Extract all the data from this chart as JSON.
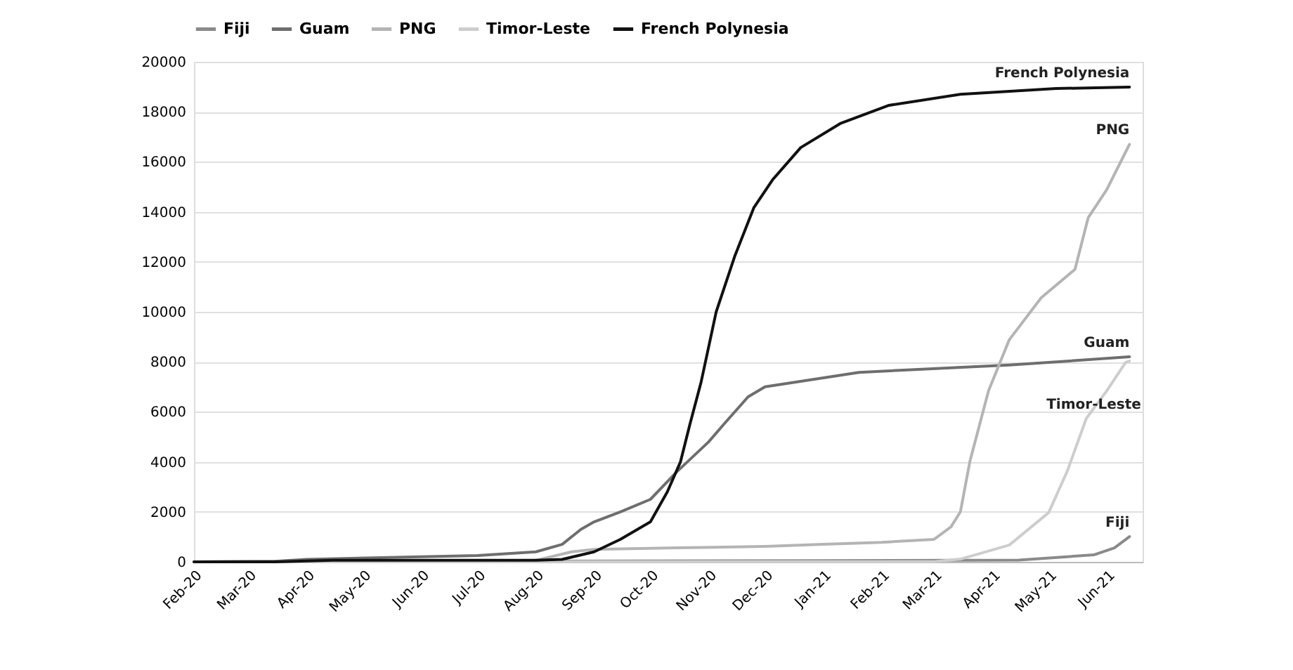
{
  "chart_data": {
    "type": "line",
    "xlim": [
      "2020-02-01",
      "2021-06-20"
    ],
    "xticks": [
      {
        "value": "2020-02-01",
        "label": "Feb-20"
      },
      {
        "value": "2020-03-01",
        "label": "Mar-20"
      },
      {
        "value": "2020-04-01",
        "label": "Apr-20"
      },
      {
        "value": "2020-05-01",
        "label": "May-20"
      },
      {
        "value": "2020-06-01",
        "label": "Jun-20"
      },
      {
        "value": "2020-07-01",
        "label": "Jul-20"
      },
      {
        "value": "2020-08-01",
        "label": "Aug-20"
      },
      {
        "value": "2020-09-01",
        "label": "Sep-20"
      },
      {
        "value": "2020-10-01",
        "label": "Oct-20"
      },
      {
        "value": "2020-11-01",
        "label": "Nov-20"
      },
      {
        "value": "2020-12-01",
        "label": "Dec-20"
      },
      {
        "value": "2021-01-01",
        "label": "Jan-21"
      },
      {
        "value": "2021-02-01",
        "label": "Feb-21"
      },
      {
        "value": "2021-03-01",
        "label": "Mar-21"
      },
      {
        "value": "2021-04-01",
        "label": "Apr-21"
      },
      {
        "value": "2021-05-01",
        "label": "May-21"
      },
      {
        "value": "2021-06-01",
        "label": "Jun-21"
      }
    ],
    "ylim": [
      0,
      20000
    ],
    "yticks": [
      0,
      2000,
      4000,
      6000,
      8000,
      10000,
      12000,
      14000,
      16000,
      18000,
      20000
    ],
    "grid": "y",
    "legend": "top",
    "line_style": "solid",
    "marker": "none",
    "series": [
      {
        "name": "Fiji",
        "color": "#8a8a8a",
        "x": [
          "2020-02-01",
          "2020-04-01",
          "2020-08-01",
          "2021-01-01",
          "2021-04-15",
          "2021-05-25",
          "2021-06-05",
          "2021-06-13"
        ],
        "values": [
          0,
          20,
          30,
          50,
          70,
          280,
          560,
          1010
        ]
      },
      {
        "name": "Guam",
        "color": "#6e6e6e",
        "x": [
          "2020-02-01",
          "2020-03-15",
          "2020-04-01",
          "2020-07-01",
          "2020-08-01",
          "2020-08-15",
          "2020-08-25",
          "2020-09-01",
          "2020-09-15",
          "2020-10-01",
          "2020-10-15",
          "2020-11-01",
          "2020-11-09",
          "2020-11-22",
          "2020-12-01",
          "2021-01-20",
          "2021-04-10",
          "2021-06-13"
        ],
        "values": [
          0,
          20,
          100,
          250,
          400,
          700,
          1300,
          1600,
          2000,
          2500,
          3600,
          4800,
          5500,
          6600,
          7000,
          7580,
          7870,
          8200
        ]
      },
      {
        "name": "PNG",
        "color": "#b4b4b4",
        "x": [
          "2020-02-01",
          "2020-07-15",
          "2020-08-01",
          "2020-08-20",
          "2020-09-01",
          "2020-10-15",
          "2020-12-01",
          "2021-01-01",
          "2021-02-01",
          "2021-03-01",
          "2021-03-10",
          "2021-03-15",
          "2021-03-20",
          "2021-03-30",
          "2021-04-10",
          "2021-04-27",
          "2021-05-15",
          "2021-05-22",
          "2021-06-01",
          "2021-06-13"
        ],
        "values": [
          0,
          20,
          60,
          400,
          500,
          560,
          620,
          700,
          780,
          900,
          1400,
          2000,
          4000,
          6850,
          8880,
          10560,
          11700,
          13760,
          14900,
          16700
        ]
      },
      {
        "name": "Timor-Leste",
        "color": "#cdcdcd",
        "x": [
          "2020-02-01",
          "2021-03-01",
          "2021-03-15",
          "2021-04-10",
          "2021-05-01",
          "2021-05-11",
          "2021-05-21",
          "2021-06-01",
          "2021-06-11",
          "2021-06-13"
        ],
        "values": [
          0,
          10,
          110,
          670,
          1970,
          3650,
          5730,
          6850,
          7980,
          8030
        ]
      },
      {
        "name": "French Polynesia",
        "color": "#111111",
        "x": [
          "2020-02-01",
          "2020-03-15",
          "2020-04-15",
          "2020-06-01",
          "2020-08-01",
          "2020-08-15",
          "2020-09-01",
          "2020-09-15",
          "2020-10-01",
          "2020-10-10",
          "2020-10-17",
          "2020-10-22",
          "2020-10-28",
          "2020-11-05",
          "2020-11-15",
          "2020-11-25",
          "2020-12-05",
          "2020-12-20",
          "2021-01-10",
          "2021-02-05",
          "2021-03-15",
          "2021-05-05",
          "2021-06-13"
        ],
        "values": [
          0,
          0,
          60,
          60,
          60,
          100,
          400,
          900,
          1600,
          2800,
          4000,
          5500,
          7200,
          10000,
          12250,
          14160,
          15280,
          16570,
          17530,
          18260,
          18700,
          18930,
          18990
        ]
      }
    ],
    "annotations": [
      {
        "text": "French Polynesia",
        "x": "2021-06-13",
        "y": 18990
      },
      {
        "text": "PNG",
        "x": "2021-06-13",
        "y": 16700
      },
      {
        "text": "Guam",
        "x": "2021-06-13",
        "y": 8200
      },
      {
        "text": "Timor-Leste",
        "x": "2021-05-25",
        "y": 6300
      },
      {
        "text": "Fiji",
        "x": "2021-06-13",
        "y": 1010
      }
    ]
  }
}
